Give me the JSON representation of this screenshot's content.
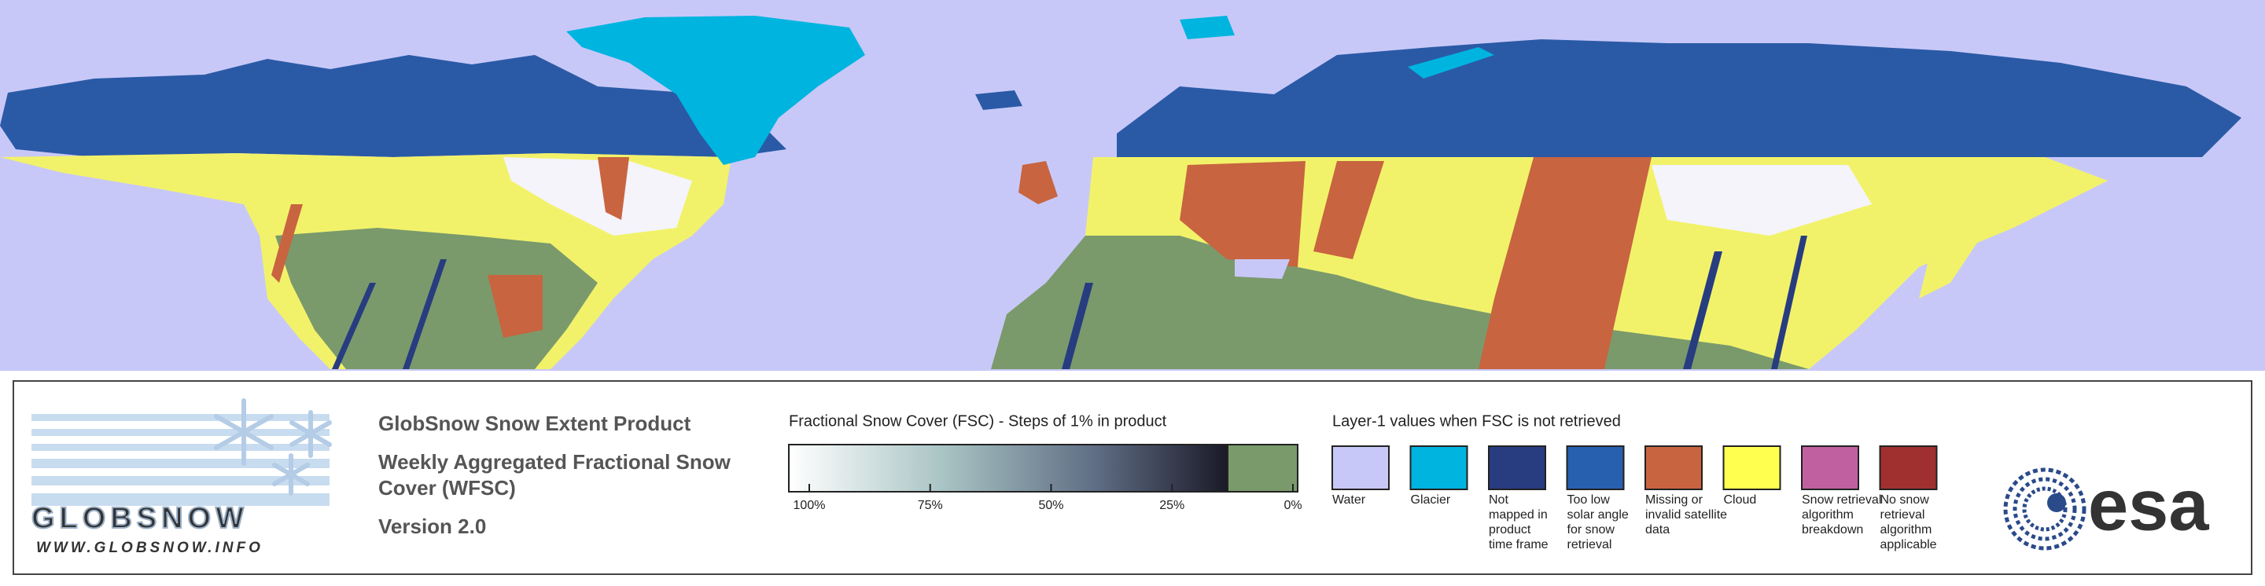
{
  "logo": {
    "name": "GLOBSNOW",
    "url": "WWW.GLOBSNOW.INFO"
  },
  "product": {
    "title": "GlobSnow Snow Extent Product",
    "subtitle_lines": [
      "Weekly Aggregated Fractional Snow",
      "Cover (WFSC)"
    ],
    "version": "Version 2.0"
  },
  "fsc_legend": {
    "title": "Fractional Snow Cover (FSC) - Steps of 1% in product",
    "ticks": [
      {
        "value": 100,
        "label": "100%"
      },
      {
        "value": 75,
        "label": "75%"
      },
      {
        "value": 50,
        "label": "50%"
      },
      {
        "value": 25,
        "label": "25%"
      },
      {
        "value": 0,
        "label": "0%"
      }
    ]
  },
  "layer1_legend": {
    "title": "Layer-1 values when FSC is not retrieved",
    "items": [
      {
        "label": [
          "Water"
        ],
        "color": "#c8c8f8"
      },
      {
        "label": [
          "Glacier"
        ],
        "color": "#00b4e0"
      },
      {
        "label": [
          "Not",
          "mapped in",
          "product",
          "time frame"
        ],
        "color": "#283c80"
      },
      {
        "label": [
          "Too low",
          "solar angle",
          "for snow",
          "retrieval"
        ],
        "color": "#2860b0"
      },
      {
        "label": [
          "Missing or",
          "invalid satellite",
          "data"
        ],
        "color": "#c86440"
      },
      {
        "label": [
          "Cloud"
        ],
        "color": "#ffff50"
      },
      {
        "label": [
          "Snow retrieval",
          "algorithm",
          "breakdown"
        ],
        "color": "#c060a0"
      },
      {
        "label": [
          "No snow",
          "retrieval",
          "algorithm",
          "applicable"
        ],
        "color": "#a03030"
      }
    ]
  },
  "agency_logo": "esa"
}
